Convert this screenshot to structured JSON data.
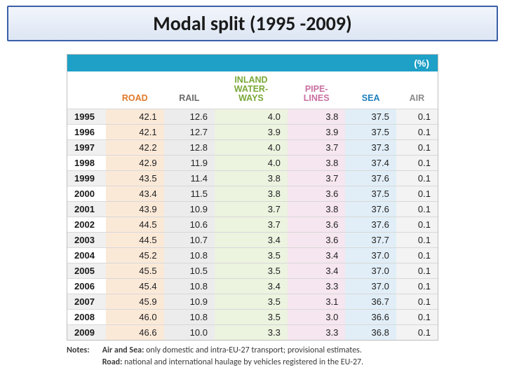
{
  "title": "Modal split (1995 -2009)",
  "table": {
    "type": "table",
    "unit_label": "(%)",
    "unit_bar_bg": "#1ea0c7",
    "unit_bar_text_color": "#ffffff",
    "columns": [
      {
        "key": "year",
        "label": "",
        "color": "#000000",
        "tint": "#ffffff",
        "width": 55
      },
      {
        "key": "road",
        "label": "ROAD",
        "color": "#e07a2a",
        "tint": "#fbe9d8"
      },
      {
        "key": "rail",
        "label": "RAIL",
        "color": "#6a6a6a",
        "tint": "#ececec"
      },
      {
        "key": "inland",
        "label": "INLAND WATER- WAYS",
        "color": "#79a837",
        "tint": "#ecf3df"
      },
      {
        "key": "pipe",
        "label": "PIPE- LINES",
        "color": "#c96fa0",
        "tint": "#f6e6ef"
      },
      {
        "key": "sea",
        "label": "SEA",
        "color": "#1e7fbf",
        "tint": "#e1eef7"
      },
      {
        "key": "air",
        "label": "AIR",
        "color": "#8a8a8a",
        "tint": "#f3f3f3"
      }
    ],
    "years": [
      "1995",
      "1996",
      "1997",
      "1998",
      "1999",
      "2000",
      "2001",
      "2002",
      "2003",
      "2004",
      "2005",
      "2006",
      "2007",
      "2008",
      "2009"
    ],
    "rows": [
      [
        "42.1",
        "12.6",
        "4.0",
        "3.8",
        "37.5",
        "0.1"
      ],
      [
        "42.1",
        "12.7",
        "3.9",
        "3.9",
        "37.5",
        "0.1"
      ],
      [
        "42.2",
        "12.8",
        "4.0",
        "3.7",
        "37.3",
        "0.1"
      ],
      [
        "42.9",
        "11.9",
        "4.0",
        "3.8",
        "37.4",
        "0.1"
      ],
      [
        "43.5",
        "11.4",
        "3.8",
        "3.7",
        "37.6",
        "0.1"
      ],
      [
        "43.4",
        "11.5",
        "3.8",
        "3.6",
        "37.5",
        "0.1"
      ],
      [
        "43.9",
        "10.9",
        "3.7",
        "3.8",
        "37.6",
        "0.1"
      ],
      [
        "44.5",
        "10.6",
        "3.7",
        "3.6",
        "37.6",
        "0.1"
      ],
      [
        "44.5",
        "10.7",
        "3.4",
        "3.6",
        "37.7",
        "0.1"
      ],
      [
        "45.2",
        "10.8",
        "3.5",
        "3.4",
        "37.0",
        "0.1"
      ],
      [
        "45.5",
        "10.5",
        "3.5",
        "3.4",
        "37.0",
        "0.1"
      ],
      [
        "45.4",
        "10.8",
        "3.4",
        "3.3",
        "37.0",
        "0.1"
      ],
      [
        "45.9",
        "10.9",
        "3.5",
        "3.1",
        "36.7",
        "0.1"
      ],
      [
        "46.0",
        "10.8",
        "3.5",
        "3.0",
        "36.6",
        "0.1"
      ],
      [
        "46.6",
        "10.0",
        "3.3",
        "3.3",
        "36.8",
        "0.1"
      ]
    ],
    "row_stripe_bg": "#f0f0f0",
    "gridline_color": "#d8d8d8",
    "header_fontsize": 12.5,
    "cell_fontsize": 13,
    "text_color": "#222222"
  },
  "notes": {
    "label": "Notes:",
    "lines": [
      {
        "lead": "Air and Sea:",
        "text": " only domestic and intra-EU-27 transport; provisional estimates."
      },
      {
        "lead": "Road:",
        "text": " national and international haulage by vehicles registered in the EU-27."
      }
    ]
  }
}
